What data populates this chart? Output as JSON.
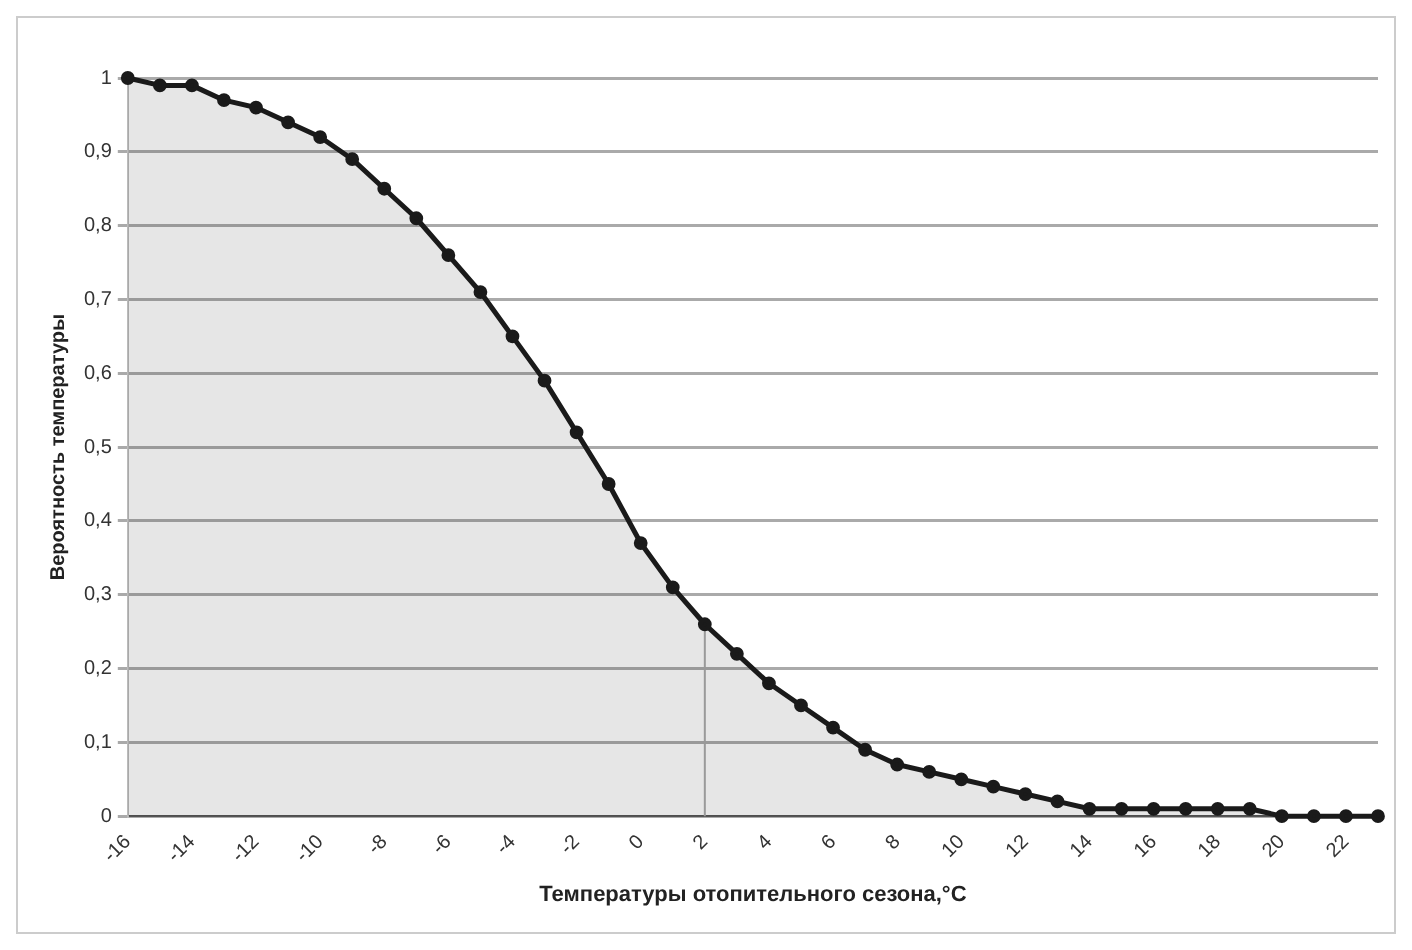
{
  "chart_data": {
    "type": "area",
    "xlabel": "Температуры отопительного сезона,°С",
    "ylabel": "Вероятность температуры",
    "x": [
      -16,
      -15,
      -14,
      -13,
      -12,
      -11,
      -10,
      -9,
      -8,
      -7,
      -6,
      -5,
      -4,
      -3,
      -2,
      -1,
      0,
      1,
      2,
      3,
      4,
      5,
      6,
      7,
      8,
      9,
      10,
      11,
      12,
      13,
      14,
      15,
      16,
      17,
      18,
      19,
      20,
      21,
      22,
      23
    ],
    "series": [
      {
        "color": "#1a1a1a",
        "values": [
          1.0,
          0.99,
          0.99,
          0.97,
          0.96,
          0.94,
          0.92,
          0.89,
          0.85,
          0.81,
          0.76,
          0.71,
          0.65,
          0.59,
          0.52,
          0.45,
          0.37,
          0.31,
          0.26,
          0.22,
          0.18,
          0.15,
          0.12,
          0.09,
          0.07,
          0.06,
          0.05,
          0.04,
          0.03,
          0.02,
          0.01,
          0.01,
          0.01,
          0.01,
          0.01,
          0.01,
          0.0,
          0.0,
          0.0,
          0.0
        ]
      }
    ],
    "xlim": [
      -16,
      23
    ],
    "xticks": [
      -16,
      -14,
      -12,
      -10,
      -8,
      -6,
      -4,
      -2,
      0,
      2,
      4,
      6,
      8,
      10,
      12,
      14,
      16,
      18,
      20,
      22
    ],
    "ylim": [
      0,
      1
    ],
    "yticks": [
      0,
      {
        "value": 0.1,
        "label": "0,1"
      },
      {
        "value": 0.2,
        "label": "0,2"
      },
      {
        "value": 0.3,
        "label": "0,3"
      },
      {
        "value": 0.4,
        "label": "0,4"
      },
      {
        "value": 0.5,
        "label": "0,5"
      },
      {
        "value": 0.6,
        "label": "0,6"
      },
      {
        "value": 0.7,
        "label": "0,7"
      },
      {
        "value": 0.8,
        "label": "0,8"
      },
      {
        "value": 0.9,
        "label": "0,9"
      },
      1
    ],
    "ref_lines": [
      {
        "axis": "x",
        "value": 2,
        "color": "#aaaaaa"
      }
    ],
    "grid": "y",
    "legend": false,
    "marker": "circle",
    "line_style": "solid"
  }
}
